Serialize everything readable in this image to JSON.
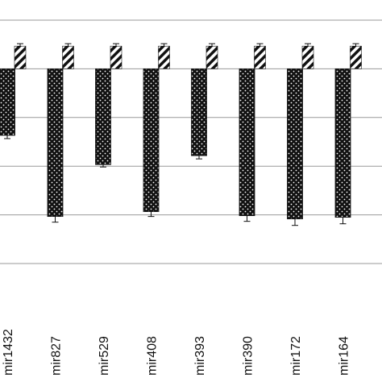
{
  "chart_data": {
    "type": "bar",
    "categories": [
      "mir1432",
      "mir827",
      "mir529",
      "mir408",
      "mir393",
      "mir390",
      "mir172",
      "mir164"
    ],
    "series": [
      {
        "pattern": "dotted",
        "values": [
          -0.82,
          -1.82,
          -1.18,
          -1.76,
          -1.07,
          -1.81,
          -1.85,
          -1.83
        ],
        "errors": [
          0.04,
          0.07,
          0.03,
          0.06,
          0.04,
          0.07,
          0.08,
          0.08
        ]
      },
      {
        "pattern": "striped",
        "values": [
          0.28,
          0.28,
          0.28,
          0.28,
          0.28,
          0.28,
          0.28,
          0.28
        ],
        "errors": [
          0.03,
          0.03,
          0.03,
          0.03,
          0.03,
          0.03,
          0.03,
          0.03
        ]
      }
    ],
    "ylim": [
      -2.4,
      0.6
    ],
    "gridlines": [
      0.6,
      0,
      -0.6,
      -1.2,
      -1.8,
      -2.4
    ],
    "grid": true,
    "legend": "none",
    "colors": {
      "bar_fill": "#111111",
      "pattern_light": "#ffffff",
      "grid": "#999999"
    }
  }
}
